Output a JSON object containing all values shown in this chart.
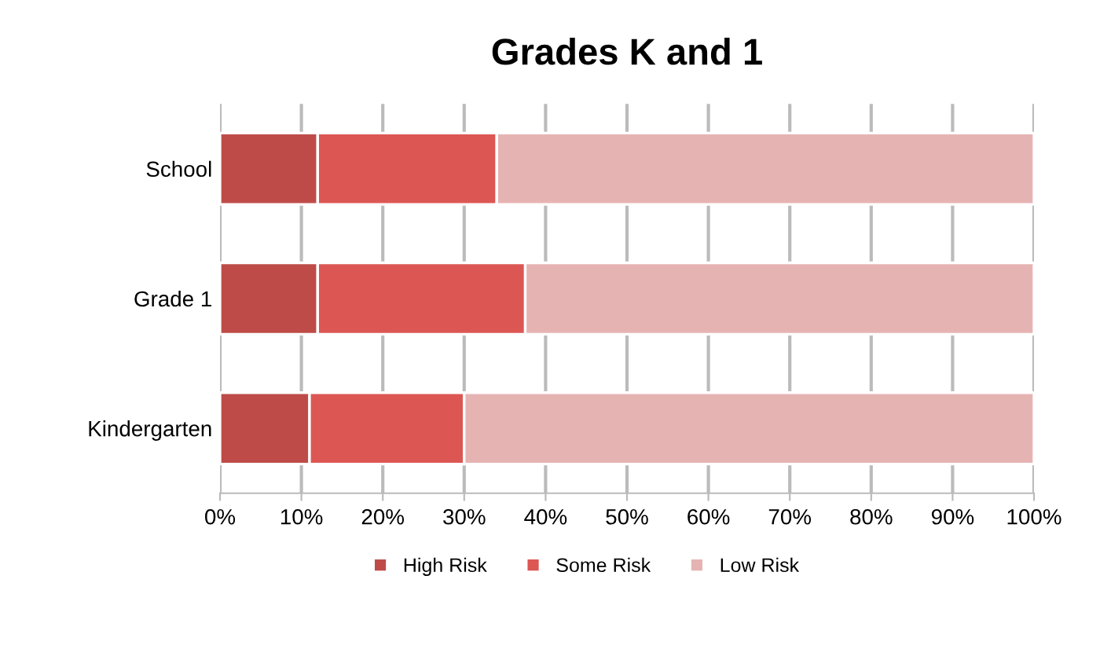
{
  "chart_data": {
    "type": "bar",
    "orientation": "horizontal",
    "stacked": true,
    "title": "Grades K and 1",
    "categories": [
      "School",
      "Grade 1",
      "Kindergarten"
    ],
    "series": [
      {
        "name": "High Risk",
        "color": "#be4b48",
        "values": [
          12,
          12,
          11
        ]
      },
      {
        "name": "Some Risk",
        "color": "#dc5754",
        "values": [
          22,
          25.5,
          19
        ]
      },
      {
        "name": "Low Risk",
        "color": "#e6b3b3",
        "values": [
          66,
          62.5,
          70
        ]
      }
    ],
    "xlim": [
      0,
      100
    ],
    "xticks": [
      {
        "value": 0,
        "label": "0%"
      },
      {
        "value": 10,
        "label": "10%"
      },
      {
        "value": 20,
        "label": "20%"
      },
      {
        "value": 30,
        "label": "30%"
      },
      {
        "value": 40,
        "label": "40%"
      },
      {
        "value": 50,
        "label": "50%"
      },
      {
        "value": 60,
        "label": "60%"
      },
      {
        "value": 70,
        "label": "70%"
      },
      {
        "value": 80,
        "label": "80%"
      },
      {
        "value": 90,
        "label": "90%"
      },
      {
        "value": 100,
        "label": "100%"
      }
    ],
    "grid": "x",
    "legend": "bottom"
  }
}
